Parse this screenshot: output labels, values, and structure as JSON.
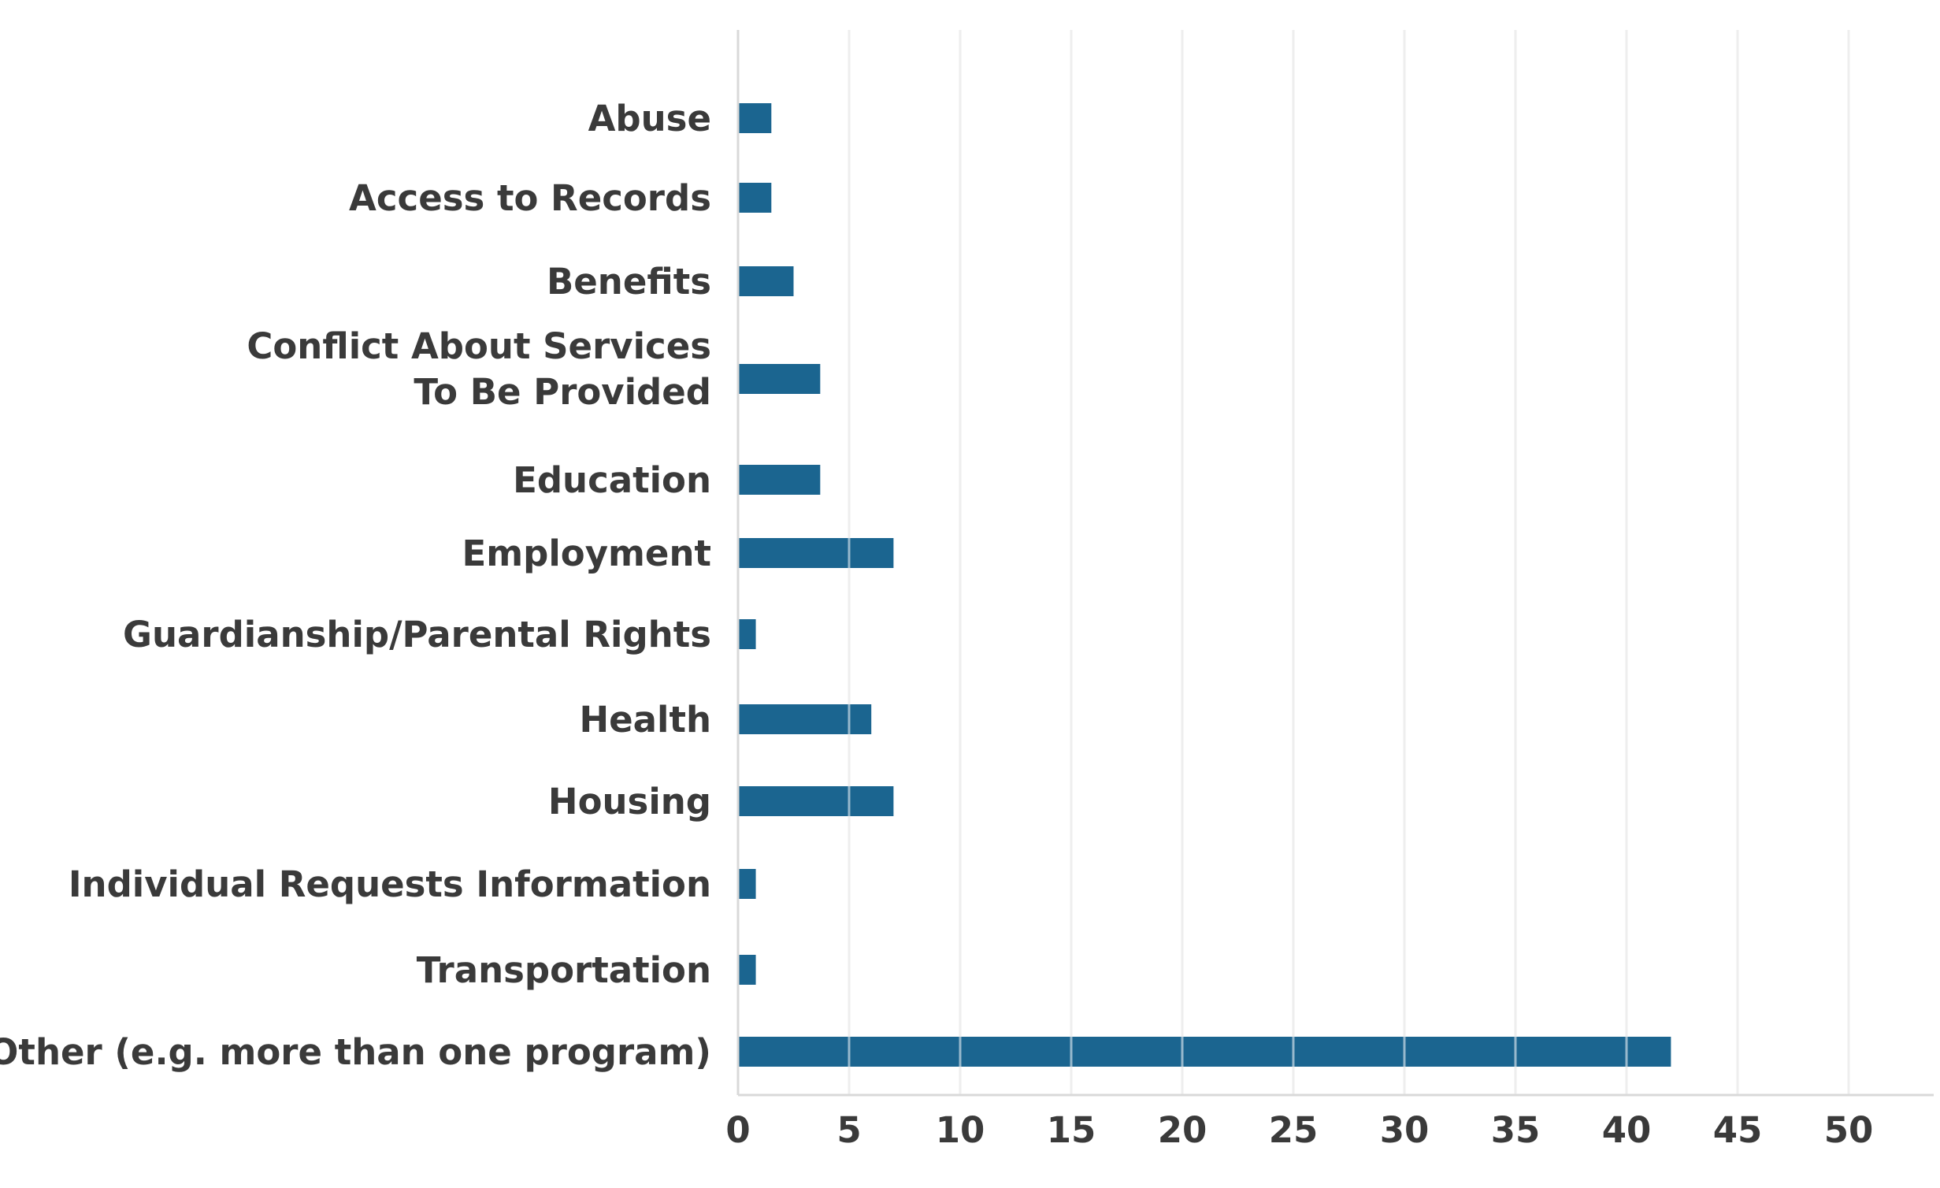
{
  "chart_data": {
    "type": "bar",
    "orientation": "horizontal",
    "categories": [
      "Abuse",
      "Access to Records",
      "Benefits",
      "Conflict About Services To Be Provided",
      "Education",
      "Employment",
      "Guardianship/Parental Rights",
      "Health",
      "Housing",
      "Individual Requests Information",
      "Transportation",
      "Other (e.g. more than one program)"
    ],
    "category_lines": [
      [
        "Abuse"
      ],
      [
        "Access to Records"
      ],
      [
        "Benefits"
      ],
      [
        "Conflict About Services",
        "To Be Provided"
      ],
      [
        "Education"
      ],
      [
        "Employment"
      ],
      [
        "Guardianship/Parental Rights"
      ],
      [
        "Health"
      ],
      [
        "Housing"
      ],
      [
        "Individual Requests Information"
      ],
      [
        "Transportation"
      ],
      [
        "Other (e.g. more than one program)"
      ]
    ],
    "values": [
      1.5,
      1.5,
      2.5,
      3.7,
      3.7,
      7,
      0.8,
      6,
      7,
      0.8,
      0.8,
      42
    ],
    "xlim": [
      0,
      55
    ],
    "x_ticks": [
      0,
      5,
      10,
      15,
      20,
      25,
      30,
      35,
      40,
      45,
      50
    ],
    "title": "",
    "xlabel": "",
    "ylabel": "",
    "grid": "vertical",
    "legend": "none",
    "bar_color": "#1b6590",
    "grid_color": "#d9d9d9",
    "text_color": "#3a3a3a"
  }
}
